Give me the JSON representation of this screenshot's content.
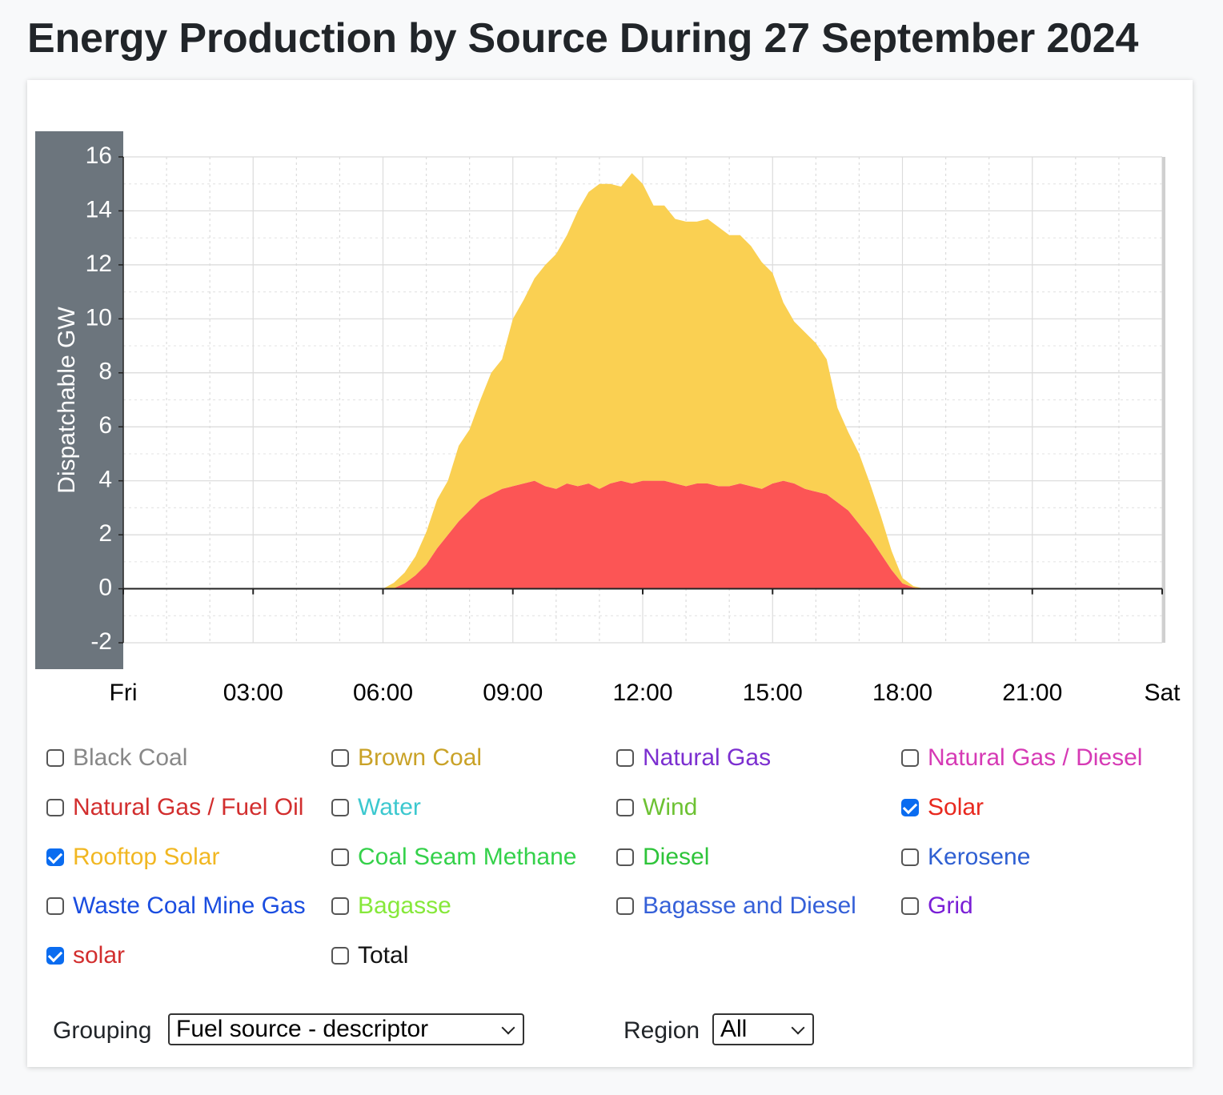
{
  "title": "Energy Production by Source During 27 September 2024",
  "chart_data": {
    "type": "area",
    "stacked": true,
    "ylabel": "Dispatchable GW",
    "ylim": [
      -2,
      16
    ],
    "yticks": [
      16,
      14,
      12,
      10,
      8,
      6,
      4,
      2,
      0,
      -2
    ],
    "xticks": [
      {
        "h": 0,
        "label": "Fri"
      },
      {
        "h": 3,
        "label": "03:00"
      },
      {
        "h": 6,
        "label": "06:00"
      },
      {
        "h": 9,
        "label": "09:00"
      },
      {
        "h": 12,
        "label": "12:00"
      },
      {
        "h": 15,
        "label": "15:00"
      },
      {
        "h": 18,
        "label": "18:00"
      },
      {
        "h": 21,
        "label": "21:00"
      },
      {
        "h": 24,
        "label": "Sat"
      }
    ],
    "x_hours": [
      0,
      6.0,
      6.25,
      6.5,
      6.75,
      7.0,
      7.25,
      7.5,
      7.75,
      8.0,
      8.25,
      8.5,
      8.75,
      9.0,
      9.25,
      9.5,
      9.75,
      10.0,
      10.25,
      10.5,
      10.75,
      11.0,
      11.25,
      11.5,
      11.75,
      12.0,
      12.25,
      12.5,
      12.75,
      13.0,
      13.25,
      13.5,
      13.75,
      14.0,
      14.25,
      14.5,
      14.75,
      15.0,
      15.25,
      15.5,
      15.75,
      16.0,
      16.25,
      16.5,
      16.75,
      17.0,
      17.25,
      17.5,
      17.75,
      18.0,
      18.25,
      18.5,
      24
    ],
    "series": [
      {
        "name": "solar",
        "color": "#fc5555",
        "values": [
          0,
          0,
          0.02,
          0.2,
          0.5,
          0.9,
          1.5,
          2.0,
          2.5,
          2.9,
          3.3,
          3.5,
          3.7,
          3.8,
          3.9,
          4.0,
          3.8,
          3.7,
          3.9,
          3.8,
          3.9,
          3.7,
          3.9,
          4.0,
          3.9,
          4.0,
          4.0,
          4.0,
          3.9,
          3.8,
          3.9,
          3.9,
          3.8,
          3.8,
          3.9,
          3.8,
          3.7,
          3.9,
          4.0,
          3.9,
          3.7,
          3.6,
          3.5,
          3.2,
          2.9,
          2.4,
          1.9,
          1.3,
          0.7,
          0.2,
          0.05,
          0,
          0
        ]
      },
      {
        "name": "Rooftop Solar",
        "color": "#fad052",
        "values": [
          0,
          0,
          0.2,
          0.4,
          0.7,
          1.2,
          1.8,
          2.0,
          2.8,
          3.0,
          3.7,
          4.5,
          4.8,
          6.2,
          6.8,
          7.5,
          8.2,
          8.7,
          9.2,
          10.2,
          10.8,
          11.3,
          11.1,
          10.9,
          11.5,
          11.0,
          10.2,
          10.2,
          9.8,
          9.8,
          9.7,
          9.8,
          9.6,
          9.3,
          9.2,
          8.9,
          8.4,
          7.8,
          6.6,
          6.0,
          5.8,
          5.5,
          5.0,
          3.5,
          2.9,
          2.6,
          2.0,
          1.4,
          0.7,
          0.2,
          0.05,
          0,
          0
        ]
      }
    ],
    "grid": true
  },
  "legend": {
    "items": [
      {
        "label": "Black Coal",
        "color": "#888888",
        "checked": false
      },
      {
        "label": "Brown Coal",
        "color": "#c9a227",
        "checked": false
      },
      {
        "label": "Natural Gas",
        "color": "#7c2fd0",
        "checked": false
      },
      {
        "label": "Natural Gas / Diesel",
        "color": "#d63ab5",
        "checked": false
      },
      {
        "label": "Natural Gas / Fuel Oil",
        "color": "#d22e2e",
        "checked": false
      },
      {
        "label": "Water",
        "color": "#3cc8cf",
        "checked": false
      },
      {
        "label": "Wind",
        "color": "#6dc233",
        "checked": false
      },
      {
        "label": "Solar",
        "color": "#e8281e",
        "checked": true
      },
      {
        "label": "Rooftop Solar",
        "color": "#f1b722",
        "checked": true
      },
      {
        "label": "Coal Seam Methane",
        "color": "#34d14a",
        "checked": false
      },
      {
        "label": "Diesel",
        "color": "#2ec43a",
        "checked": false
      },
      {
        "label": "Kerosene",
        "color": "#2e5fd2",
        "checked": false
      },
      {
        "label": "Waste Coal Mine Gas",
        "color": "#1a4de0",
        "checked": false
      },
      {
        "label": "Bagasse",
        "color": "#86e83a",
        "checked": false
      },
      {
        "label": "Bagasse and Diesel",
        "color": "#3560d8",
        "checked": false
      },
      {
        "label": "Grid",
        "color": "#7a1fd6",
        "checked": false
      },
      {
        "label": "solar",
        "color": "#d22e2e",
        "checked": true
      },
      {
        "label": "Total",
        "color": "#111111",
        "checked": false
      }
    ]
  },
  "controls": {
    "grouping_label": "Grouping",
    "grouping_value": "Fuel source - descriptor",
    "region_label": "Region",
    "region_value": "All"
  }
}
